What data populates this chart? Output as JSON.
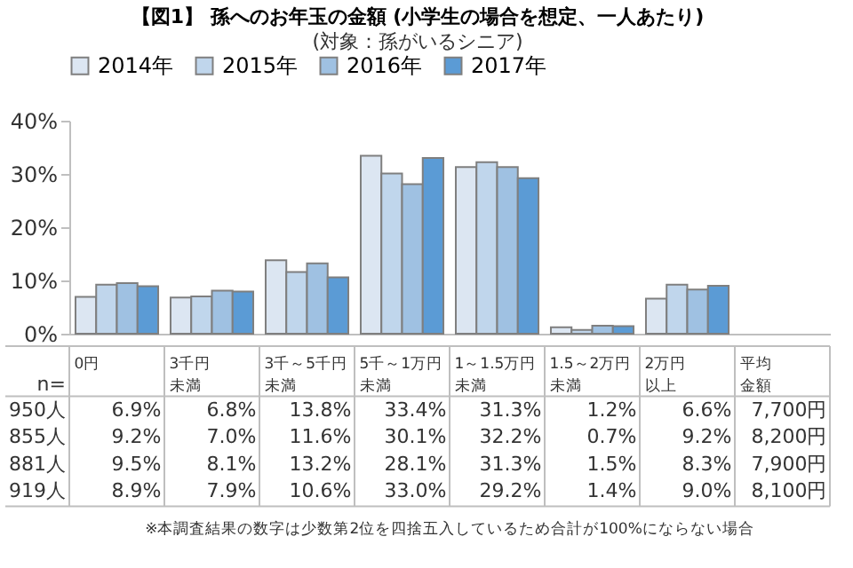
{
  "chart_data": {
    "type": "bar",
    "title": "【図1】 孫へのお年玉の金額 (小学生の場合を想定、一人あたり)",
    "subtitle": "(対象：孫がいるシニア)",
    "categories": [
      "0円",
      "3千円未満",
      "3千～5千円未満",
      "5千～1万円未満",
      "1～1.5万円未満",
      "1.5～2万円未満",
      "2万円以上"
    ],
    "series": [
      {
        "name": "2014年",
        "color": "#dce6f2",
        "values": [
          6.9,
          6.8,
          13.8,
          33.4,
          31.3,
          1.2,
          6.6
        ],
        "value_labels": [
          "6.9%",
          "6.8%",
          "13.8%",
          "33.4%",
          "31.3%",
          "1.2%",
          "6.6%"
        ]
      },
      {
        "name": "2015年",
        "color": "#c0d6ec",
        "values": [
          9.2,
          7.0,
          11.6,
          30.1,
          32.2,
          0.7,
          9.2
        ],
        "value_labels": [
          "9.2%",
          "7.0%",
          "11.6%",
          "30.1%",
          "32.2%",
          "0.7%",
          "9.2%"
        ]
      },
      {
        "name": "2016年",
        "color": "#9fc1e2",
        "values": [
          9.5,
          8.1,
          13.2,
          28.1,
          31.3,
          1.5,
          8.3
        ],
        "value_labels": [
          "9.5%",
          "8.1%",
          "13.2%",
          "28.1%",
          "31.3%",
          "1.5%",
          "8.3%"
        ]
      },
      {
        "name": "2017年",
        "color": "#5b9bd5",
        "values": [
          8.9,
          7.9,
          10.6,
          33.0,
          29.2,
          1.4,
          9.0
        ],
        "value_labels": [
          "8.9%",
          "7.9%",
          "10.6%",
          "33.0%",
          "29.2%",
          "1.4%",
          "9.0%"
        ]
      }
    ],
    "ylim": [
      0,
      40
    ],
    "yticks": [
      {
        "value": 0,
        "label": "0%"
      },
      {
        "value": 10,
        "label": "10%"
      },
      {
        "value": 20,
        "label": "20%"
      },
      {
        "value": 30,
        "label": "30%"
      },
      {
        "value": 40,
        "label": "40%"
      }
    ],
    "legend": "top",
    "annotations": [
      "n=",
      "950人",
      "855人",
      "881人",
      "919人",
      "平均金額",
      "7,700円",
      "8,200円",
      "7,900円",
      "8,100円",
      "※本調査結果の数字は少数第2位を四捨五入しているため合計が100%にならない場合"
    ]
  }
}
